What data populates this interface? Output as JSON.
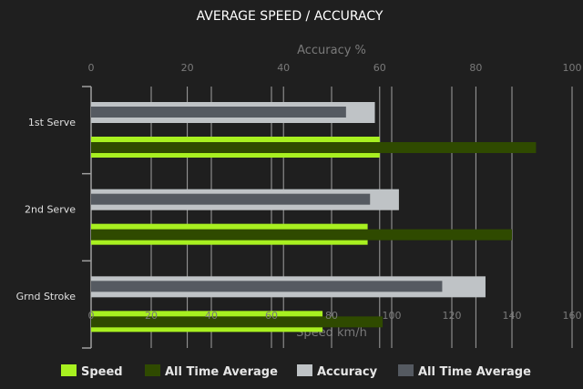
{
  "chart_data": {
    "type": "bar",
    "orientation": "horizontal",
    "title": "AVERAGE SPEED / ACCURACY",
    "categories": [
      "1st Serve",
      "2nd Serve",
      "Grnd Stroke"
    ],
    "x_bottom": {
      "label": "Speed km/h",
      "range": [
        0,
        160
      ],
      "ticks": [
        0,
        20,
        40,
        60,
        80,
        100,
        120,
        140,
        160
      ]
    },
    "x_top": {
      "label": "Accuracy %",
      "range": [
        0,
        100
      ],
      "ticks": [
        0,
        20,
        40,
        60,
        80,
        100
      ]
    },
    "grid": true,
    "legend_position": "bottom",
    "series": [
      {
        "name": "Speed",
        "axis": "bottom",
        "color": "#a8f020",
        "values": [
          96,
          92,
          77
        ]
      },
      {
        "name": "All Time Average",
        "axis": "bottom",
        "color": "#2f4a00",
        "values": [
          148,
          140,
          97
        ]
      },
      {
        "name": "Accuracy",
        "axis": "top",
        "color": "#bfc3c6",
        "values": [
          59,
          64,
          82
        ]
      },
      {
        "name": "All Time Average",
        "axis": "top",
        "color": "#555a61",
        "values": [
          53,
          58,
          73
        ]
      }
    ]
  }
}
